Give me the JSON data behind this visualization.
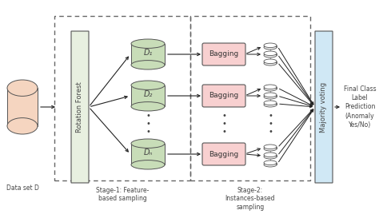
{
  "bg_color": "#ffffff",
  "dataset_color": "#f5d5c0",
  "rotation_forest_color": "#e8f0e0",
  "d_cylinder_color": "#c8ddb8",
  "bagging_color": "#f8d0d0",
  "majority_color": "#d0e8f5",
  "stage1_label": "Stage-1: Feature-\nbased sampling",
  "stage2_label": "Stage-2:\nInstances-based\nsampling",
  "dataset_label": "Data set D",
  "rotation_label": "Rotation Forest",
  "majority_label": "Majority voting",
  "output_label": "Final Class\nLabel\nPrediction\n(Anomaly\nYes/No)",
  "d_labels": [
    "D₁",
    "D₂",
    "Dₙ"
  ],
  "bagging_label": "Bagging",
  "edge_color": "#555555",
  "arrow_color": "#222222",
  "text_color": "#444444"
}
